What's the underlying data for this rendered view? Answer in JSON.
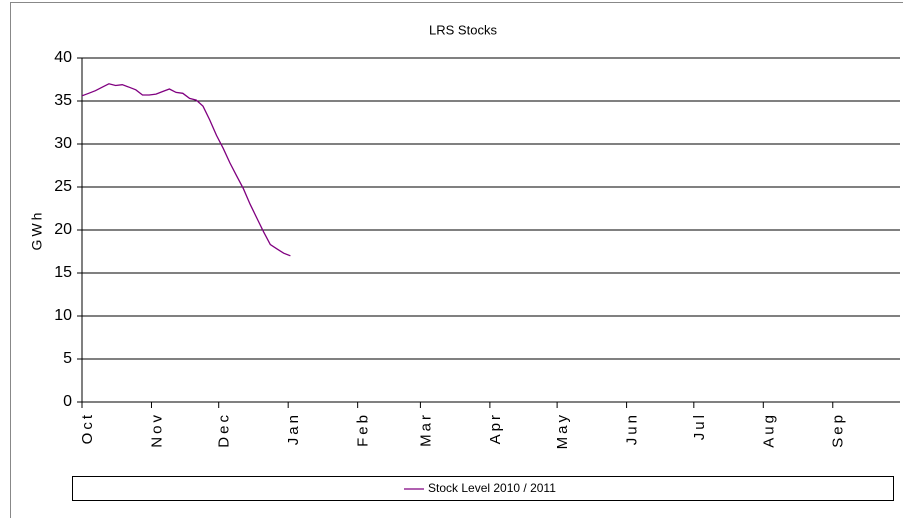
{
  "chart_data": {
    "type": "line",
    "title": "LRS Stocks",
    "y_label": "GWh",
    "x": [
      0,
      3,
      6,
      9,
      12,
      15,
      18,
      21,
      24,
      27,
      30,
      33,
      36,
      39,
      42,
      45,
      48,
      51,
      54,
      57,
      60,
      63,
      66,
      69,
      72,
      75,
      78,
      81,
      84,
      87,
      90,
      93
    ],
    "series": [
      {
        "name": "Stock Level 2010 / 2011",
        "color": "#800080",
        "values": [
          35.6,
          35.9,
          36.2,
          36.6,
          37.0,
          36.8,
          36.9,
          36.6,
          36.3,
          35.7,
          35.7,
          35.8,
          36.1,
          36.4,
          36.0,
          35.9,
          35.3,
          35.1,
          34.4,
          32.8,
          31.0,
          29.5,
          27.8,
          26.3,
          24.8,
          23.0,
          21.4,
          19.8,
          18.3,
          17.8,
          17.3,
          17.0
        ]
      }
    ],
    "xlim": [
      0,
      365
    ],
    "xticks": [
      {
        "value": 0,
        "label": "Oct"
      },
      {
        "value": 31,
        "label": "Nov"
      },
      {
        "value": 61,
        "label": "Dec"
      },
      {
        "value": 92,
        "label": "Jan"
      },
      {
        "value": 123,
        "label": "Feb"
      },
      {
        "value": 151,
        "label": "Mar"
      },
      {
        "value": 182,
        "label": "Apr"
      },
      {
        "value": 212,
        "label": "May"
      },
      {
        "value": 243,
        "label": "Jun"
      },
      {
        "value": 273,
        "label": "Jul"
      },
      {
        "value": 304,
        "label": "Aug"
      },
      {
        "value": 335,
        "label": "Sep"
      }
    ],
    "ylim": [
      0,
      40
    ],
    "yticks": [
      0,
      5,
      10,
      15,
      20,
      25,
      30,
      35,
      40
    ],
    "grid": true,
    "legend": "bottom"
  }
}
